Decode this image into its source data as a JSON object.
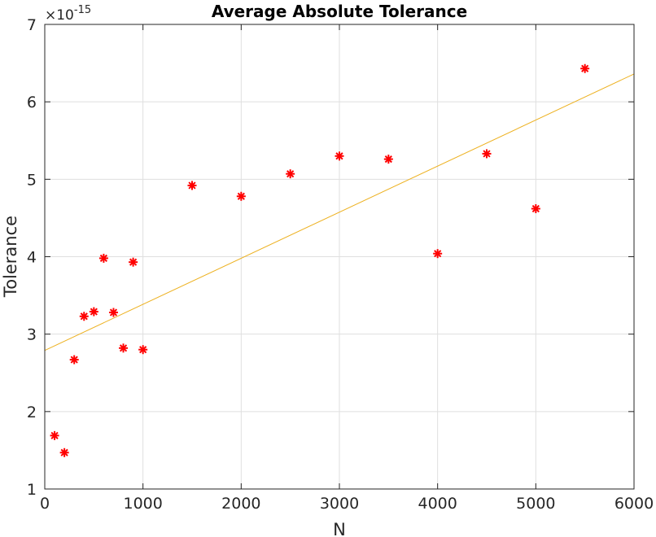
{
  "chart_data": {
    "type": "scatter",
    "title": "Average Absolute Tolerance",
    "xlabel": "N",
    "ylabel": "Tolerance",
    "xlim": [
      0,
      6000
    ],
    "ylim": [
      1e-15,
      7e-15
    ],
    "xticks": [
      0,
      1000,
      2000,
      3000,
      4000,
      5000,
      6000
    ],
    "xtick_labels": [
      "0",
      "1000",
      "2000",
      "3000",
      "4000",
      "5000",
      "6000"
    ],
    "yticks": [
      1e-15,
      2e-15,
      3e-15,
      4e-15,
      5e-15,
      6e-15,
      7e-15
    ],
    "ytick_labels": [
      "1",
      "2",
      "3",
      "4",
      "5",
      "6",
      "7"
    ],
    "y_exponent": {
      "base": "×10",
      "power": "-15"
    },
    "grid": true,
    "series": [
      {
        "type": "scatter",
        "marker": "*",
        "color": "#ff0000",
        "x": [
          100,
          200,
          300,
          400,
          500,
          600,
          700,
          800,
          900,
          1000,
          1500,
          2000,
          2500,
          3000,
          3500,
          4000,
          4500,
          5000,
          5500
        ],
        "y": [
          1.69e-15,
          1.47e-15,
          2.67e-15,
          3.23e-15,
          3.29e-15,
          3.98e-15,
          3.28e-15,
          2.82e-15,
          3.93e-15,
          2.8e-15,
          4.92e-15,
          4.78e-15,
          5.07e-15,
          5.3e-15,
          5.26e-15,
          4.04e-15,
          5.33e-15,
          4.62e-15,
          6.43e-15
        ]
      },
      {
        "type": "line",
        "color": "#edb120",
        "x": [
          0,
          6000
        ],
        "y": [
          2.79e-15,
          6.36e-15
        ]
      }
    ]
  }
}
